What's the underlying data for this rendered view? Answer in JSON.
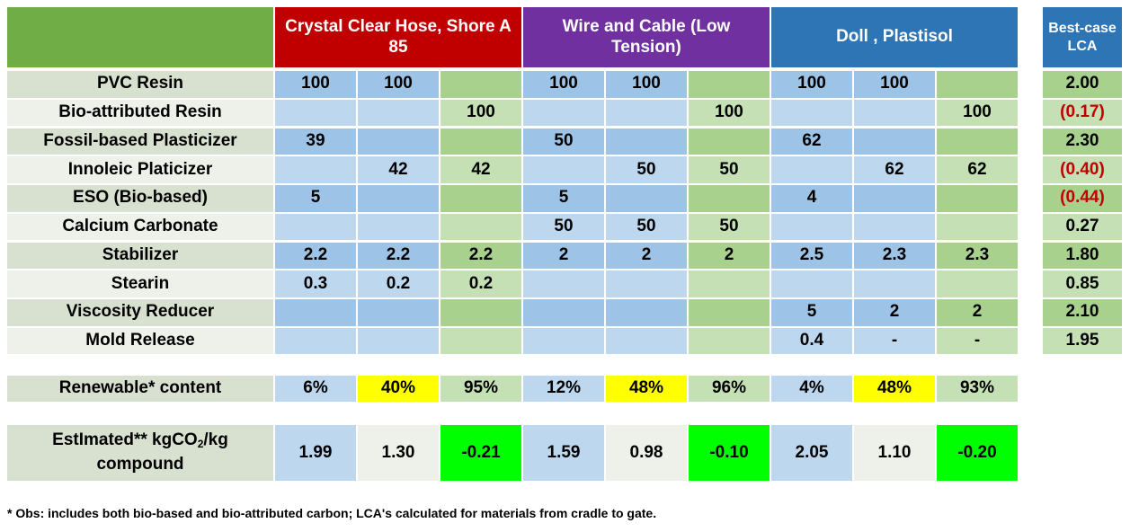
{
  "headers": {
    "groups": [
      {
        "title": "Crystal Clear Hose, Shore A 85",
        "color": "#c00000"
      },
      {
        "title": "Wire and Cable (Low Tension)",
        "color": "#7030a0"
      },
      {
        "title": "Doll , Plastisol",
        "color": "#2e75b6"
      }
    ],
    "lca": {
      "title": "Best-case LCA",
      "color": "#2e75b6"
    },
    "corner_color": "#70ad47"
  },
  "rows": [
    {
      "label": "PVC Resin",
      "values": [
        "100",
        "100",
        "",
        "100",
        "100",
        "",
        "100",
        "100",
        ""
      ],
      "lca": "2.00"
    },
    {
      "label": "Bio-attributed Resin",
      "values": [
        "",
        "",
        "100",
        "",
        "",
        "100",
        "",
        "",
        "100"
      ],
      "lca": "(0.17)"
    },
    {
      "label": "Fossil-based Plasticizer",
      "values": [
        "39",
        "",
        "",
        "50",
        "",
        "",
        "62",
        "",
        ""
      ],
      "lca": "2.30"
    },
    {
      "label": "Innoleic Platicizer",
      "values": [
        "",
        "42",
        "42",
        "",
        "50",
        "50",
        "",
        "62",
        "62"
      ],
      "lca": "(0.40)"
    },
    {
      "label": "ESO (Bio-based)",
      "values": [
        "5",
        "",
        "",
        "5",
        "",
        "",
        "4",
        "",
        ""
      ],
      "lca": "(0.44)"
    },
    {
      "label": "Calcium Carbonate",
      "values": [
        "",
        "",
        "",
        "50",
        "50",
        "50",
        "",
        "",
        ""
      ],
      "lca": "0.27"
    },
    {
      "label": "Stabilizer",
      "values": [
        "2.2",
        "2.2",
        "2.2",
        "2",
        "2",
        "2",
        "2.5",
        "2.3",
        "2.3"
      ],
      "lca": "1.80"
    },
    {
      "label": "Stearin",
      "values": [
        "0.3",
        "0.2",
        "0.2",
        "",
        "",
        "",
        "",
        "",
        ""
      ],
      "lca": "0.85"
    },
    {
      "label": "Viscosity Reducer",
      "values": [
        "",
        "",
        "",
        "",
        "",
        "",
        "5",
        "2",
        "2"
      ],
      "lca": "2.10"
    },
    {
      "label": "Mold Release",
      "values": [
        "",
        "",
        "",
        "",
        "",
        "",
        "0.4",
        "-",
        "-"
      ],
      "lca": "1.95"
    }
  ],
  "renewable": {
    "label": "Renewable* content",
    "values": [
      "6%",
      "40%",
      "95%",
      "12%",
      "48%",
      "96%",
      "4%",
      "48%",
      "93%"
    ]
  },
  "estimated": {
    "label_pre": "EstImated** kgCO",
    "label_sub": "2",
    "label_post": "/kg compound",
    "values": [
      "1.99",
      "1.30",
      "-0.21",
      "1.59",
      "0.98",
      "-0.10",
      "2.05",
      "1.10",
      "-0.20"
    ]
  },
  "colors": {
    "label_dark": "#d8e0d0",
    "label_light": "#eef1ea",
    "blue_dark": "#9dc3e6",
    "blue_light": "#bdd7ee",
    "green_dark": "#a9d18e",
    "green_light": "#c5e0b4",
    "highlight_yellow": "#ffff00",
    "highlight_green": "#00ff00",
    "negative_text": "#c00000"
  },
  "footnote": "* Obs: includes both bio-based and bio-attributed carbon; LCA's calculated for materials from cradle to gate."
}
